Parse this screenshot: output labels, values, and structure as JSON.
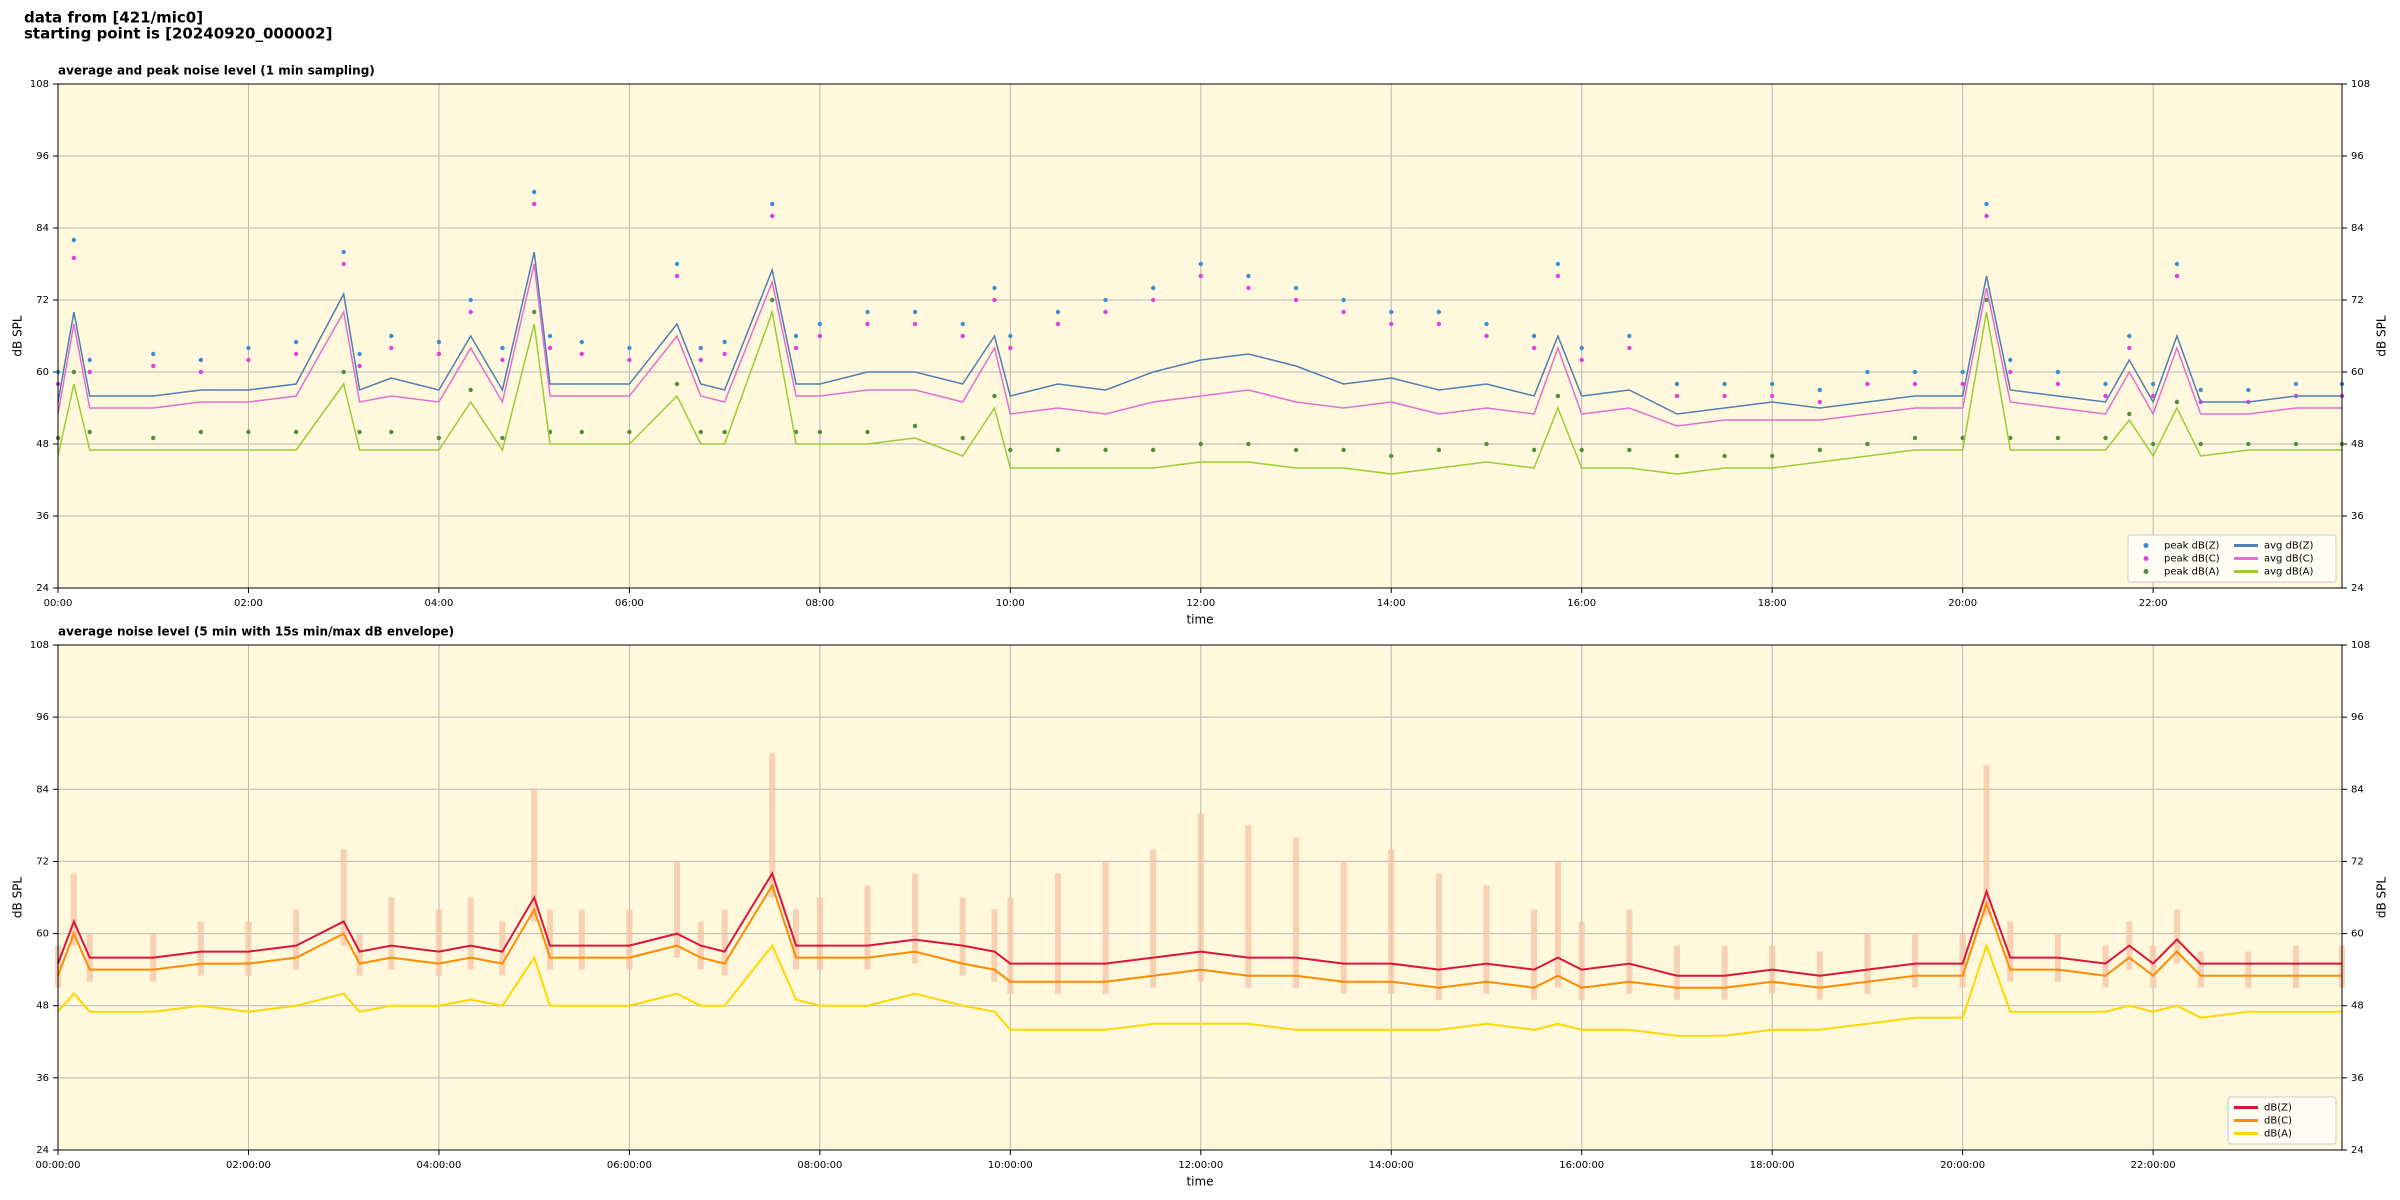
{
  "header": {
    "line1": "data from [421/mic0]",
    "line2": "starting point is [20240920_000002]"
  },
  "chart_data": [
    {
      "type": "line",
      "title": "average and peak noise level (1 min sampling)",
      "xlabel": "time",
      "ylabel": "dB SPL",
      "background": "#fff8dc",
      "grid": true,
      "legend": "lower right",
      "legend_columns": 2,
      "xlim": [
        "00:00",
        "23:59"
      ],
      "xticks": [
        "00:00",
        "02:00",
        "04:00",
        "06:00",
        "08:00",
        "10:00",
        "12:00",
        "14:00",
        "16:00",
        "18:00",
        "20:00",
        "22:00"
      ],
      "ylim": [
        24,
        108
      ],
      "yticks": [
        24,
        36,
        48,
        60,
        72,
        84,
        96,
        108
      ],
      "x": [
        "00:00",
        "00:10",
        "00:20",
        "01:00",
        "01:30",
        "02:00",
        "02:30",
        "03:00",
        "03:10",
        "03:30",
        "04:00",
        "04:20",
        "04:40",
        "05:00",
        "05:10",
        "05:30",
        "06:00",
        "06:30",
        "06:45",
        "07:00",
        "07:30",
        "07:45",
        "08:00",
        "08:30",
        "09:00",
        "09:30",
        "09:50",
        "10:00",
        "10:30",
        "11:00",
        "11:30",
        "12:00",
        "12:30",
        "13:00",
        "13:30",
        "14:00",
        "14:30",
        "15:00",
        "15:30",
        "15:45",
        "16:00",
        "16:30",
        "17:00",
        "17:30",
        "18:00",
        "18:30",
        "19:00",
        "19:30",
        "20:00",
        "20:15",
        "20:30",
        "21:00",
        "21:30",
        "21:45",
        "22:00",
        "22:15",
        "22:30",
        "23:00",
        "23:30",
        "23:59"
      ],
      "series": [
        {
          "name": "peak dB(Z)",
          "type": "scatter",
          "color": "#3a8fd9",
          "values": [
            60,
            82,
            62,
            63,
            62,
            64,
            65,
            80,
            63,
            66,
            65,
            72,
            64,
            90,
            66,
            65,
            64,
            78,
            64,
            65,
            88,
            66,
            68,
            70,
            70,
            68,
            74,
            66,
            70,
            72,
            74,
            78,
            76,
            74,
            72,
            70,
            70,
            68,
            66,
            78,
            64,
            66,
            58,
            58,
            58,
            57,
            60,
            60,
            60,
            88,
            62,
            60,
            58,
            66,
            58,
            78,
            57,
            57,
            58,
            58
          ]
        },
        {
          "name": "peak dB(C)",
          "type": "scatter",
          "color": "#e040e0",
          "values": [
            58,
            79,
            60,
            61,
            60,
            62,
            63,
            78,
            61,
            64,
            63,
            70,
            62,
            88,
            64,
            63,
            62,
            76,
            62,
            63,
            86,
            64,
            66,
            68,
            68,
            66,
            72,
            64,
            68,
            70,
            72,
            76,
            74,
            72,
            70,
            68,
            68,
            66,
            64,
            76,
            62,
            64,
            56,
            56,
            56,
            55,
            58,
            58,
            58,
            86,
            60,
            58,
            56,
            64,
            56,
            76,
            55,
            55,
            56,
            56
          ]
        },
        {
          "name": "peak dB(A)",
          "type": "scatter",
          "color": "#4e8f3a",
          "values": [
            49,
            60,
            50,
            49,
            50,
            50,
            50,
            60,
            50,
            50,
            49,
            57,
            49,
            70,
            50,
            50,
            50,
            58,
            50,
            50,
            72,
            50,
            50,
            50,
            51,
            49,
            56,
            47,
            47,
            47,
            47,
            48,
            48,
            47,
            47,
            46,
            47,
            48,
            47,
            56,
            47,
            47,
            46,
            46,
            46,
            47,
            48,
            49,
            49,
            72,
            49,
            49,
            49,
            53,
            48,
            55,
            48,
            48,
            48,
            48
          ]
        },
        {
          "name": "avg dB(Z)",
          "type": "line",
          "color": "#4f7fb3",
          "values": [
            55,
            70,
            56,
            56,
            57,
            57,
            58,
            73,
            57,
            59,
            57,
            66,
            57,
            80,
            58,
            58,
            58,
            68,
            58,
            57,
            77,
            58,
            58,
            60,
            60,
            58,
            66,
            56,
            58,
            57,
            60,
            62,
            63,
            61,
            58,
            59,
            57,
            58,
            56,
            66,
            56,
            57,
            53,
            54,
            55,
            54,
            55,
            56,
            56,
            76,
            57,
            56,
            55,
            62,
            55,
            66,
            55,
            55,
            56,
            56
          ]
        },
        {
          "name": "avg dB(C)",
          "type": "line",
          "color": "#e070d0",
          "values": [
            53,
            68,
            54,
            54,
            55,
            55,
            56,
            70,
            55,
            56,
            55,
            64,
            55,
            78,
            56,
            56,
            56,
            66,
            56,
            55,
            75,
            56,
            56,
            57,
            57,
            55,
            64,
            53,
            54,
            53,
            55,
            56,
            57,
            55,
            54,
            55,
            53,
            54,
            53,
            64,
            53,
            54,
            51,
            52,
            52,
            52,
            53,
            54,
            54,
            74,
            55,
            54,
            53,
            60,
            53,
            64,
            53,
            53,
            54,
            54
          ]
        },
        {
          "name": "avg dB(A)",
          "type": "line",
          "color": "#9acd32",
          "values": [
            46,
            58,
            47,
            47,
            47,
            47,
            47,
            58,
            47,
            47,
            47,
            55,
            47,
            68,
            48,
            48,
            48,
            56,
            48,
            48,
            70,
            48,
            48,
            48,
            49,
            46,
            54,
            44,
            44,
            44,
            44,
            45,
            45,
            44,
            44,
            43,
            44,
            45,
            44,
            54,
            44,
            44,
            43,
            44,
            44,
            45,
            46,
            47,
            47,
            70,
            47,
            47,
            47,
            52,
            46,
            54,
            46,
            47,
            47,
            47
          ]
        }
      ]
    },
    {
      "type": "line",
      "title": "average noise level (5 min with 15s min/max dB envelope)",
      "xlabel": "time",
      "ylabel": "dB SPL",
      "background": "#fff8dc",
      "grid": true,
      "legend": "lower right",
      "legend_columns": 1,
      "xlim": [
        "00:00:00",
        "23:59:00"
      ],
      "xticks": [
        "00:00:00",
        "02:00:00",
        "04:00:00",
        "06:00:00",
        "08:00:00",
        "10:00:00",
        "12:00:00",
        "14:00:00",
        "16:00:00",
        "18:00:00",
        "20:00:00",
        "22:00:00"
      ],
      "ylim": [
        24,
        108
      ],
      "yticks": [
        24,
        36,
        48,
        60,
        72,
        84,
        96,
        108
      ],
      "x": [
        "00:00:00",
        "00:10:00",
        "00:20:00",
        "01:00:00",
        "01:30:00",
        "02:00:00",
        "02:30:00",
        "03:00:00",
        "03:10:00",
        "03:30:00",
        "04:00:00",
        "04:20:00",
        "04:40:00",
        "05:00:00",
        "05:10:00",
        "05:30:00",
        "06:00:00",
        "06:30:00",
        "06:45:00",
        "07:00:00",
        "07:30:00",
        "07:45:00",
        "08:00:00",
        "08:30:00",
        "09:00:00",
        "09:30:00",
        "09:50:00",
        "10:00:00",
        "10:30:00",
        "11:00:00",
        "11:30:00",
        "12:00:00",
        "12:30:00",
        "13:00:00",
        "13:30:00",
        "14:00:00",
        "14:30:00",
        "15:00:00",
        "15:30:00",
        "15:45:00",
        "16:00:00",
        "16:30:00",
        "17:00:00",
        "17:30:00",
        "18:00:00",
        "18:30:00",
        "19:00:00",
        "19:30:00",
        "20:00:00",
        "20:15:00",
        "20:30:00",
        "21:00:00",
        "21:30:00",
        "21:45:00",
        "22:00:00",
        "22:15:00",
        "22:30:00",
        "23:00:00",
        "23:30:00",
        "23:59:00"
      ],
      "envelope": {
        "color": "#f6c6a8",
        "max": [
          58,
          70,
          60,
          60,
          62,
          62,
          64,
          74,
          60,
          66,
          64,
          66,
          62,
          84,
          64,
          64,
          64,
          72,
          62,
          64,
          90,
          64,
          66,
          68,
          70,
          66,
          64,
          66,
          70,
          72,
          74,
          80,
          78,
          76,
          72,
          74,
          70,
          68,
          64,
          72,
          62,
          64,
          58,
          58,
          58,
          57,
          60,
          60,
          60,
          88,
          62,
          60,
          58,
          62,
          58,
          64,
          57,
          57,
          58,
          58
        ],
        "min": [
          51,
          58,
          52,
          52,
          53,
          53,
          54,
          58,
          53,
          54,
          53,
          54,
          53,
          62,
          54,
          54,
          54,
          56,
          54,
          53,
          66,
          54,
          54,
          54,
          55,
          53,
          52,
          50,
          50,
          50,
          51,
          52,
          51,
          51,
          50,
          50,
          49,
          50,
          49,
          51,
          49,
          50,
          49,
          49,
          50,
          49,
          50,
          51,
          51,
          63,
          52,
          52,
          51,
          54,
          51,
          55,
          51,
          51,
          51,
          51
        ]
      },
      "series": [
        {
          "name": "dB(Z)",
          "type": "line",
          "color": "#dc143c",
          "values": [
            55,
            62,
            56,
            56,
            57,
            57,
            58,
            62,
            57,
            58,
            57,
            58,
            57,
            66,
            58,
            58,
            58,
            60,
            58,
            57,
            70,
            58,
            58,
            58,
            59,
            58,
            57,
            55,
            55,
            55,
            56,
            57,
            56,
            56,
            55,
            55,
            54,
            55,
            54,
            56,
            54,
            55,
            53,
            53,
            54,
            53,
            54,
            55,
            55,
            67,
            56,
            56,
            55,
            58,
            55,
            59,
            55,
            55,
            55,
            55
          ]
        },
        {
          "name": "dB(C)",
          "type": "line",
          "color": "#ff8c00",
          "values": [
            53,
            60,
            54,
            54,
            55,
            55,
            56,
            60,
            55,
            56,
            55,
            56,
            55,
            64,
            56,
            56,
            56,
            58,
            56,
            55,
            68,
            56,
            56,
            56,
            57,
            55,
            54,
            52,
            52,
            52,
            53,
            54,
            53,
            53,
            52,
            52,
            51,
            52,
            51,
            53,
            51,
            52,
            51,
            51,
            52,
            51,
            52,
            53,
            53,
            65,
            54,
            54,
            53,
            56,
            53,
            57,
            53,
            53,
            53,
            53
          ]
        },
        {
          "name": "dB(A)",
          "type": "line",
          "color": "#ffd700",
          "values": [
            47,
            50,
            47,
            47,
            48,
            47,
            48,
            50,
            47,
            48,
            48,
            49,
            48,
            56,
            48,
            48,
            48,
            50,
            48,
            48,
            58,
            49,
            48,
            48,
            50,
            48,
            47,
            44,
            44,
            44,
            45,
            45,
            45,
            44,
            44,
            44,
            44,
            45,
            44,
            45,
            44,
            44,
            43,
            43,
            44,
            44,
            45,
            46,
            46,
            58,
            47,
            47,
            47,
            48,
            47,
            48,
            46,
            47,
            47,
            47
          ]
        }
      ]
    }
  ]
}
